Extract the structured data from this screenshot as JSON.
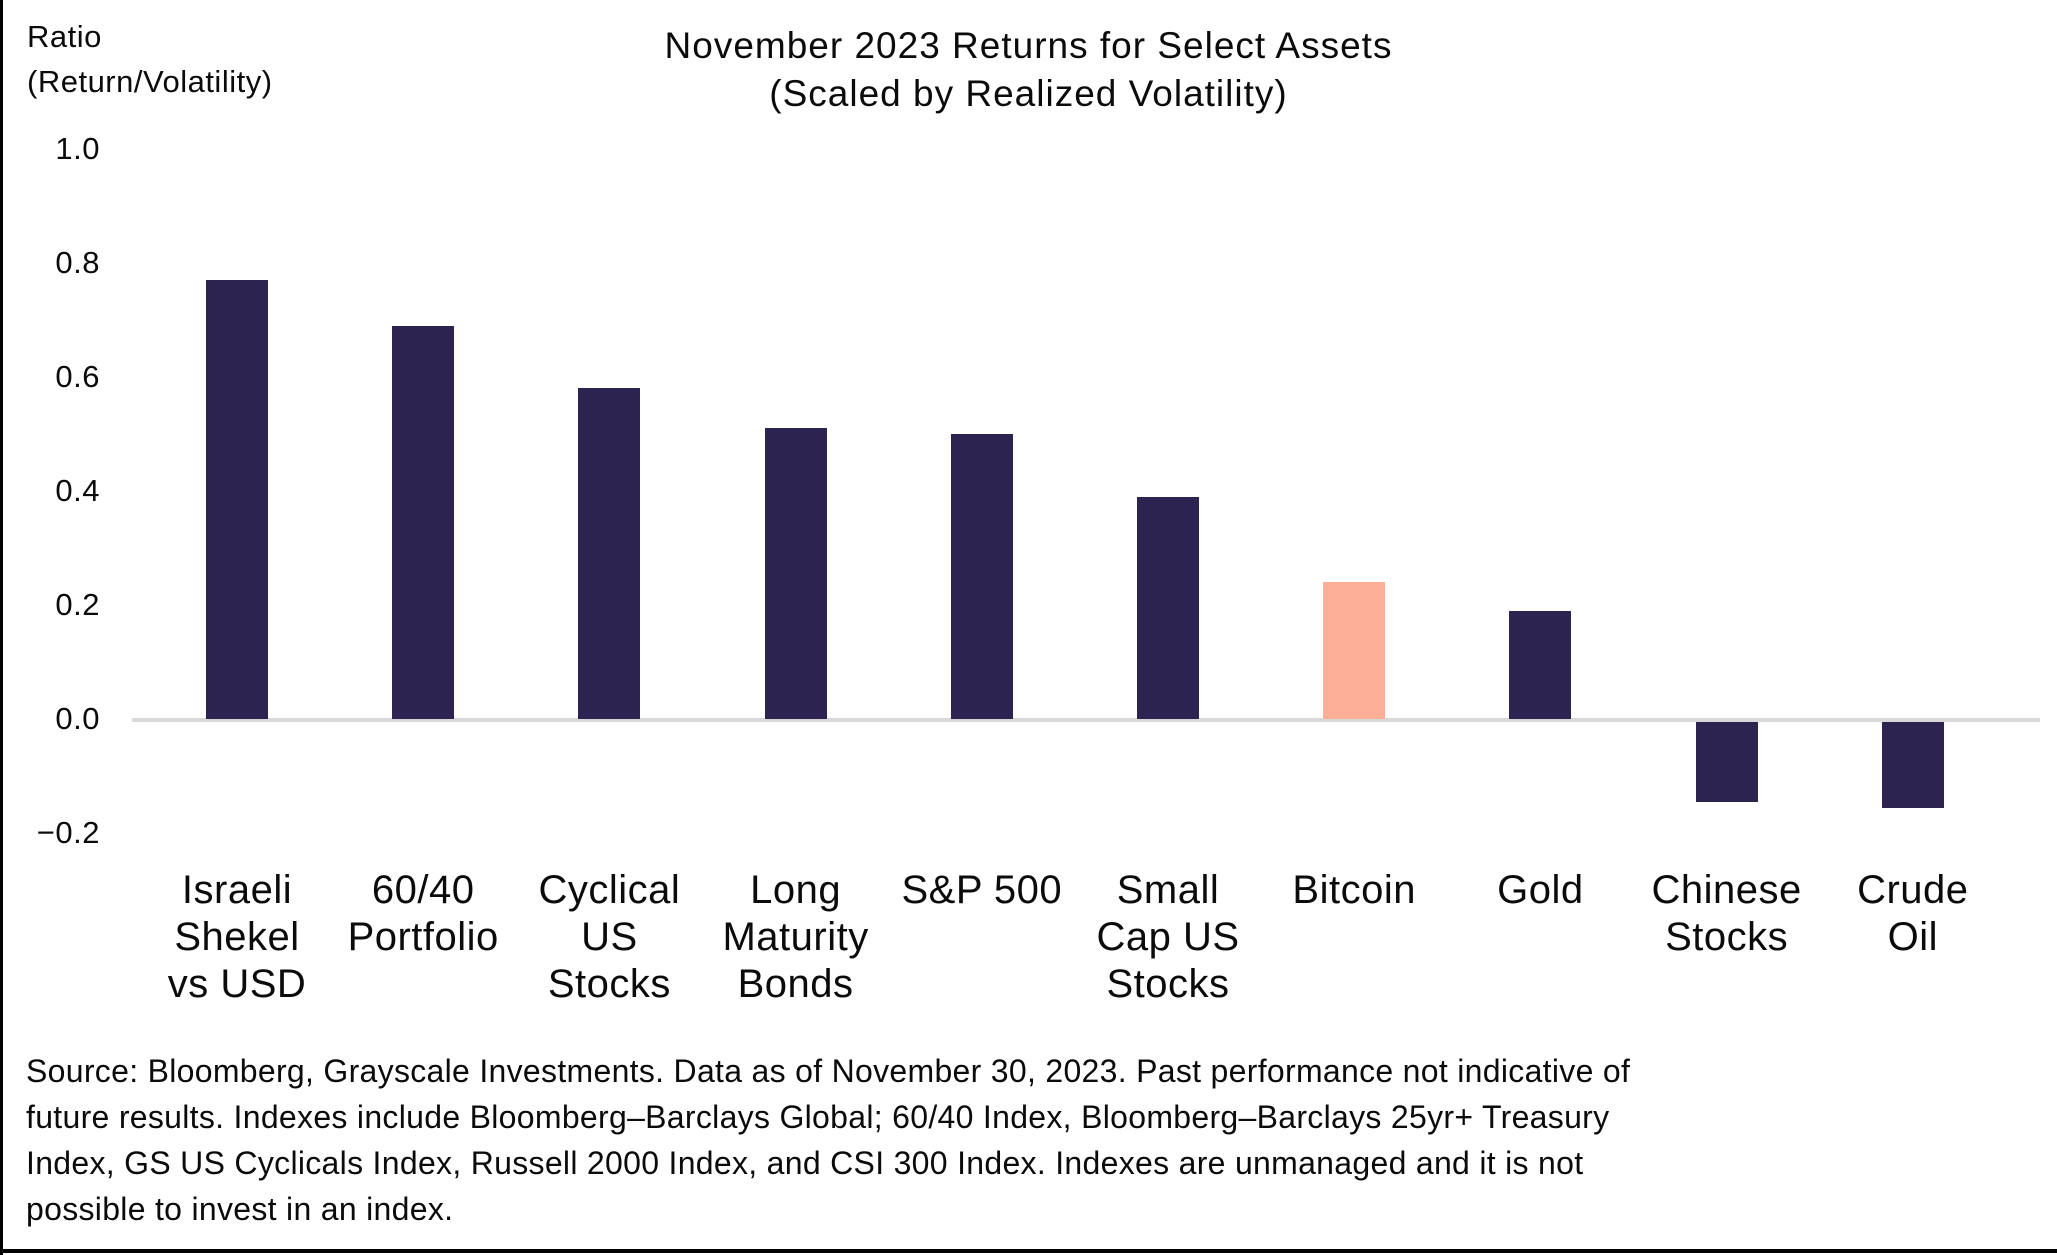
{
  "y_axis_unit": {
    "line1": "Ratio",
    "line2": "(Return/Volatility)"
  },
  "title": {
    "line1": "November 2023 Returns for Select Assets",
    "line2": "(Scaled by Realized Volatility)"
  },
  "chart_data": {
    "type": "bar",
    "title": "November 2023 Returns for Select Assets (Scaled by Realized Volatility)",
    "ylabel": "Ratio (Return/Volatility)",
    "xlabel": "",
    "categories": [
      "Israeli Shekel vs USD",
      "60/40 Portfolio",
      "Cyclical US Stocks",
      "Long Maturity Bonds",
      "S&P 500",
      "Small Cap US Stocks",
      "Bitcoin",
      "Gold",
      "Chinese Stocks",
      "Crude Oil"
    ],
    "category_lines": [
      [
        "Israeli",
        "Shekel",
        "vs USD"
      ],
      [
        "60/40",
        "Portfolio"
      ],
      [
        "Cyclical",
        "US",
        "Stocks"
      ],
      [
        "Long",
        "Maturity",
        "Bonds"
      ],
      [
        "S&P 500"
      ],
      [
        "Small",
        "Cap US",
        "Stocks"
      ],
      [
        "Bitcoin"
      ],
      [
        "Gold"
      ],
      [
        "Chinese",
        "Stocks"
      ],
      [
        "Crude",
        "Oil"
      ]
    ],
    "values": [
      0.77,
      0.69,
      0.58,
      0.51,
      0.5,
      0.39,
      0.24,
      0.19,
      -0.14,
      -0.15
    ],
    "highlight_index": 6,
    "bar_color": "#2C2350",
    "highlight_color": "#FCAF96",
    "axis_line_color": "#d8d8d8",
    "y_ticks": [
      1.0,
      0.8,
      0.6,
      0.4,
      0.2,
      0.0,
      -0.2
    ],
    "y_tick_labels": [
      "1.0",
      "0.8",
      "0.6",
      "0.4",
      "0.2",
      "0.0",
      "−0.2"
    ],
    "ylim": [
      -0.2,
      1.0
    ],
    "grid": false,
    "legend_position": "none"
  },
  "source_note": {
    "lines": [
      "Source: Bloomberg, Grayscale Investments. Data as of November 30, 2023. Past performance not indicative of",
      "future results. Indexes include Bloomberg–Barclays Global; 60/40 Index, Bloomberg–Barclays 25yr+ Treasury",
      "Index, GS US Cyclicals Index, Russell 2000 Index, and CSI 300 Index. Indexes are unmanaged and it is not",
      "possible to invest in an index."
    ]
  }
}
